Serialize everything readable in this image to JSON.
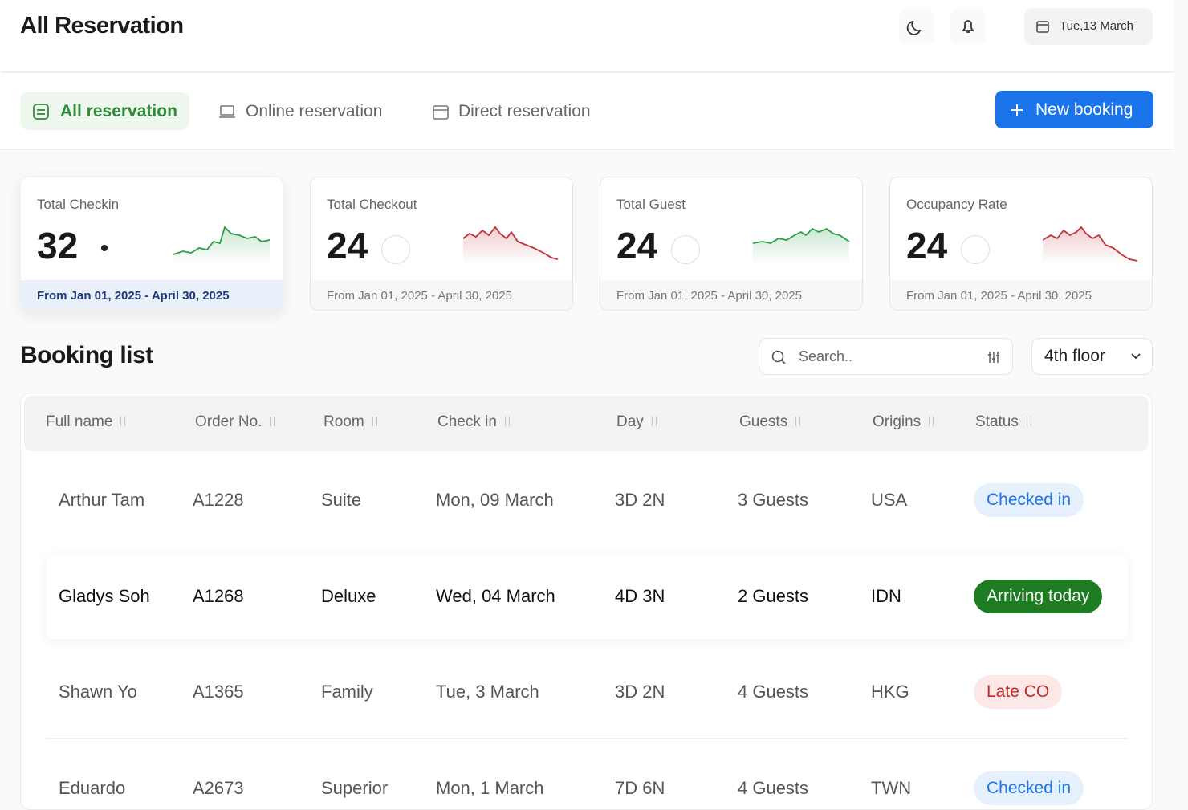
{
  "header": {
    "title": "All Reservation",
    "date": "Tue,13 March"
  },
  "tabs": [
    "All reservation",
    "Online reservation",
    "Direct reservation"
  ],
  "new_booking": "New booking",
  "stats": [
    {
      "label": "Total Checkin",
      "value": "32",
      "range": "From Jan 01, 2025 - April 30, 2025",
      "trend_color": "#2e9e4a",
      "highlighted": true
    },
    {
      "label": "Total Checkout",
      "value": "24",
      "range": "From Jan 01, 2025 - April 30, 2025",
      "trend_color": "#c0313a",
      "highlighted": false
    },
    {
      "label": "Total Guest",
      "value": "24",
      "range": "From Jan 01, 2025 - April 30, 2025",
      "trend_color": "#2e9e4a",
      "highlighted": false
    },
    {
      "label": "Occupancy Rate",
      "value": "24",
      "range": "From Jan 01, 2025 - April 30, 2025",
      "trend_color": "#c0313a",
      "highlighted": false
    }
  ],
  "booking_list": {
    "title": "Booking list",
    "search_placeholder": "Search..",
    "floor": "4th floor",
    "columns": [
      "Full name",
      "Order No.",
      "Room",
      "Check in",
      "Day",
      "Guests",
      "Origins",
      "Status"
    ],
    "rows": [
      {
        "cells": [
          "Arthur Tam",
          "A1228",
          "Suite",
          "Mon, 09 March",
          "3D 2N",
          "3 Guests",
          "USA"
        ],
        "status": "Checked in",
        "status_color": "#1a73e8",
        "status_background": "#e6f1fd",
        "highlighted": false
      },
      {
        "cells": [
          "Gladys Soh",
          "A1268",
          "Deluxe",
          "Wed, 04 March",
          "4D 3N",
          "2 Guests",
          "IDN"
        ],
        "status": "Arriving today",
        "status_color": "#ffffff",
        "status_background": "#1e7d22",
        "highlighted": true
      },
      {
        "cells": [
          "Shawn Yo",
          "A1365",
          "Family",
          "Tue, 3 March",
          "3D 2N",
          "4 Guests",
          "HKG"
        ],
        "status": "Late CO",
        "status_color": "#c62828",
        "status_background": "#fde8e8",
        "highlighted": false
      },
      {
        "cells": [
          "Eduardo",
          "A2673",
          "Superior",
          "Mon, 1 March",
          "7D 6N",
          "4 Guests",
          "TWN"
        ],
        "status": "Checked in",
        "status_color": "#1a73e8",
        "status_background": "#e6f1fd",
        "highlighted": false
      }
    ]
  }
}
